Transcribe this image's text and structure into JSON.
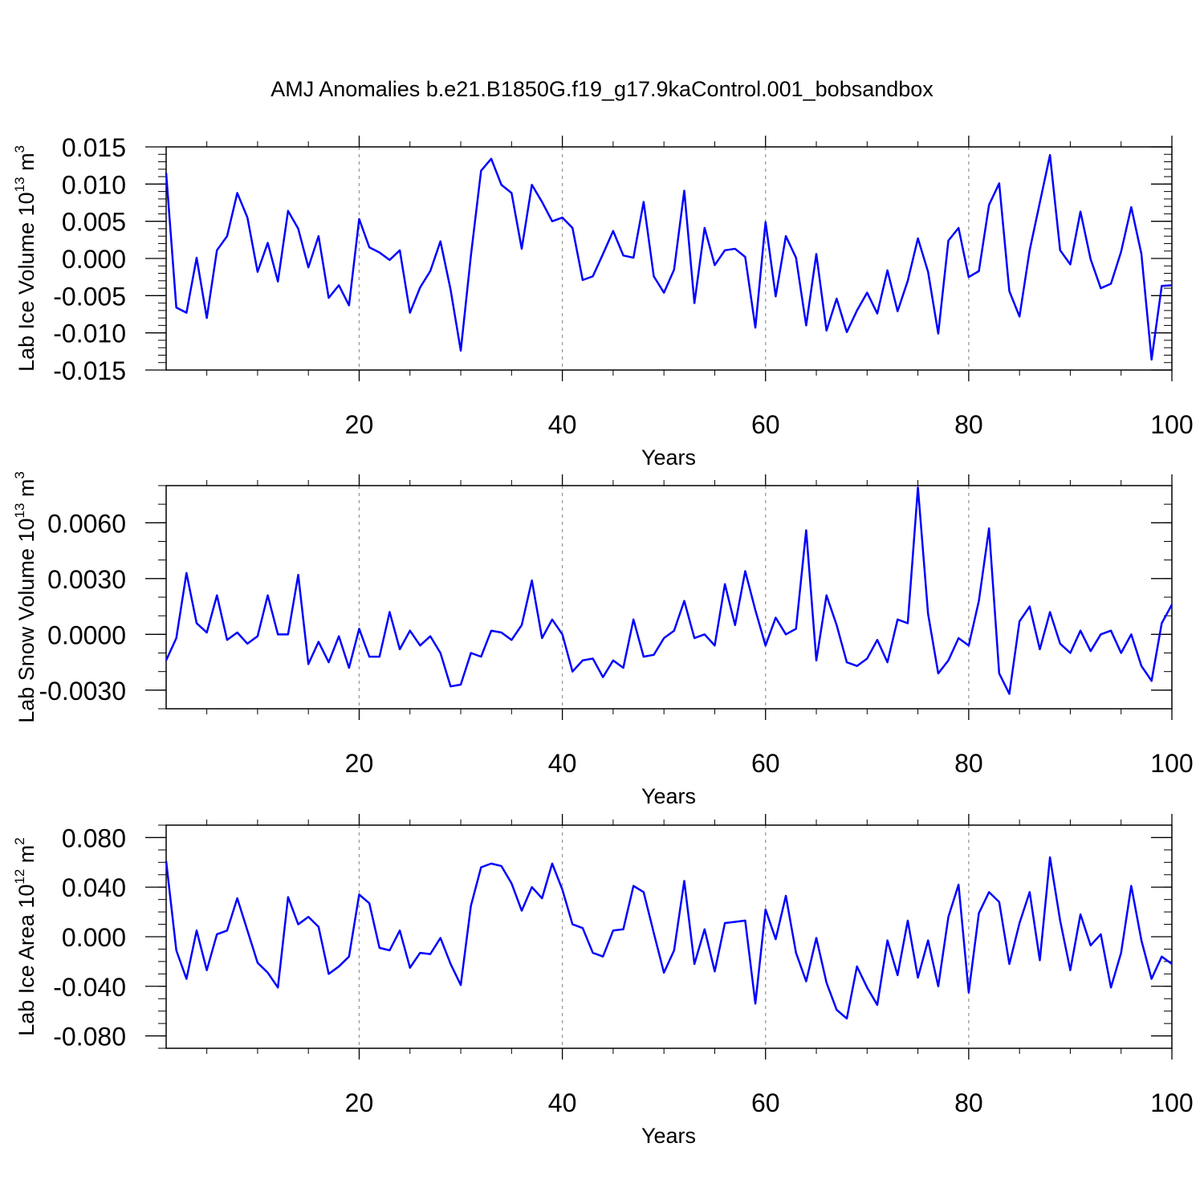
{
  "figure": {
    "title": "AMJ Anomalies b.e21.B1850G.f19_g17.9kaControl.001_bobsandbox"
  },
  "chart_data": [
    {
      "type": "line",
      "ylabel_base": "Lab Ice Volume 10",
      "ylabel_exp": "13",
      "ylabel_unit": " m",
      "ylabel_unit_exp": "3",
      "xlabel": "Years",
      "xlim": [
        1,
        100
      ],
      "ylim": [
        -0.015,
        0.015
      ],
      "xticks": [
        20,
        40,
        60,
        80,
        100
      ],
      "yticks": [
        -0.015,
        -0.01,
        -0.005,
        0.0,
        0.005,
        0.01,
        0.015
      ],
      "ytick_labels": [
        "-0.015",
        "-0.010",
        "-0.005",
        "0.000",
        "0.005",
        "0.010",
        "0.015"
      ],
      "y_minor_step": 0.001,
      "grid": "dashed vertical at major x ticks",
      "line_color": "#0000ff",
      "x": [
        1,
        2,
        3,
        4,
        5,
        6,
        7,
        8,
        9,
        10,
        11,
        12,
        13,
        14,
        15,
        16,
        17,
        18,
        19,
        20,
        21,
        22,
        23,
        24,
        25,
        26,
        27,
        28,
        29,
        30,
        31,
        32,
        33,
        34,
        35,
        36,
        37,
        38,
        39,
        40,
        41,
        42,
        43,
        44,
        45,
        46,
        47,
        48,
        49,
        50,
        51,
        52,
        53,
        54,
        55,
        56,
        57,
        58,
        59,
        60,
        61,
        62,
        63,
        64,
        65,
        66,
        67,
        68,
        69,
        70,
        71,
        72,
        73,
        74,
        75,
        76,
        77,
        78,
        79,
        80,
        81,
        82,
        83,
        84,
        85,
        86,
        87,
        88,
        89,
        90,
        91,
        92,
        93,
        94,
        95,
        96,
        97,
        98,
        99,
        100
      ],
      "values": [
        0.0115,
        -0.0066,
        -0.0073,
        0.0001,
        -0.008,
        0.0011,
        0.003,
        0.0088,
        0.0055,
        -0.0018,
        0.0021,
        -0.0031,
        0.0064,
        0.004,
        -0.0012,
        0.003,
        -0.0053,
        -0.0036,
        -0.0063,
        0.0053,
        0.0015,
        0.0008,
        -0.0002,
        0.0011,
        -0.0073,
        -0.0039,
        -0.0017,
        0.0023,
        -0.0042,
        -0.0124,
        0.0004,
        0.0118,
        0.0134,
        0.0099,
        0.0088,
        0.0013,
        0.0099,
        0.0076,
        0.005,
        0.0055,
        0.0041,
        -0.0029,
        -0.0024,
        0.0006,
        0.0037,
        0.0004,
        0.0001,
        0.0076,
        -0.0024,
        -0.0046,
        -0.0015,
        0.0091,
        -0.006,
        0.0041,
        -0.0009,
        0.0011,
        0.0013,
        0.0002,
        -0.0093,
        0.0049,
        -0.0051,
        0.003,
        0.0001,
        -0.009,
        0.0006,
        -0.0097,
        -0.0054,
        -0.0099,
        -0.007,
        -0.0046,
        -0.0074,
        -0.0016,
        -0.0071,
        -0.003,
        0.0027,
        -0.0018,
        -0.0101,
        0.0024,
        0.0041,
        -0.0025,
        -0.0017,
        0.0072,
        0.0101,
        -0.0044,
        -0.0078,
        0.0011,
        0.0075,
        0.0139,
        0.0011,
        -0.0008,
        0.0063,
        -0.0001,
        -0.004,
        -0.0034,
        0.0009,
        0.0069,
        0.0006,
        -0.0136,
        -0.0037,
        -0.0036
      ]
    },
    {
      "type": "line",
      "ylabel_base": "Lab Snow Volume 10",
      "ylabel_exp": "13",
      "ylabel_unit": " m",
      "ylabel_unit_exp": "3",
      "xlabel": "Years",
      "xlim": [
        1,
        100
      ],
      "ylim": [
        -0.004,
        0.008
      ],
      "xticks": [
        20,
        40,
        60,
        80,
        100
      ],
      "yticks": [
        -0.003,
        0.0,
        0.003,
        0.006
      ],
      "ytick_labels": [
        "-0.0030",
        "0.0000",
        "0.0030",
        "0.0060"
      ],
      "y_minor_step": 0.001,
      "grid": "dashed vertical at major x ticks",
      "line_color": "#0000ff",
      "x": [
        1,
        2,
        3,
        4,
        5,
        6,
        7,
        8,
        9,
        10,
        11,
        12,
        13,
        14,
        15,
        16,
        17,
        18,
        19,
        20,
        21,
        22,
        23,
        24,
        25,
        26,
        27,
        28,
        29,
        30,
        31,
        32,
        33,
        34,
        35,
        36,
        37,
        38,
        39,
        40,
        41,
        42,
        43,
        44,
        45,
        46,
        47,
        48,
        49,
        50,
        51,
        52,
        53,
        54,
        55,
        56,
        57,
        58,
        59,
        60,
        61,
        62,
        63,
        64,
        65,
        66,
        67,
        68,
        69,
        70,
        71,
        72,
        73,
        74,
        75,
        76,
        77,
        78,
        79,
        80,
        81,
        82,
        83,
        84,
        85,
        86,
        87,
        88,
        89,
        90,
        91,
        92,
        93,
        94,
        95,
        96,
        97,
        98,
        99,
        100
      ],
      "values": [
        -0.0014,
        -0.0002,
        0.0033,
        0.0006,
        0.0001,
        0.0021,
        -0.0003,
        0.0001,
        -0.0005,
        -0.0001,
        0.0021,
        0.0,
        0.0,
        0.0032,
        -0.0016,
        -0.0004,
        -0.0015,
        -0.0001,
        -0.0018,
        0.0003,
        -0.0012,
        -0.0012,
        0.0012,
        -0.0008,
        0.0002,
        -0.0006,
        -0.0001,
        -0.001,
        -0.0028,
        -0.0027,
        -0.001,
        -0.0012,
        0.0002,
        0.0001,
        -0.0003,
        0.0005,
        0.0029,
        -0.0002,
        0.0008,
        0.0,
        -0.002,
        -0.0014,
        -0.0013,
        -0.0023,
        -0.0014,
        -0.0018,
        0.0008,
        -0.0012,
        -0.0011,
        -0.0002,
        0.0002,
        0.0018,
        -0.0002,
        0.0,
        -0.0006,
        0.0027,
        0.0005,
        0.0034,
        0.0013,
        -0.0006,
        0.0009,
        0.0,
        0.0003,
        0.0056,
        -0.0014,
        0.0021,
        0.0005,
        -0.0015,
        -0.0017,
        -0.0013,
        -0.0003,
        -0.0015,
        0.0008,
        0.0006,
        0.0079,
        0.0011,
        -0.0021,
        -0.0014,
        -0.0002,
        -0.0006,
        0.0018,
        0.0057,
        -0.0021,
        -0.0032,
        0.0007,
        0.0015,
        -0.0008,
        0.0012,
        -0.0005,
        -0.001,
        0.0002,
        -0.0009,
        0.0,
        0.0002,
        -0.001,
        0.0,
        -0.0017,
        -0.0025,
        0.0006,
        0.0016
      ]
    },
    {
      "type": "line",
      "ylabel_base": "Lab Ice Area 10",
      "ylabel_exp": "12",
      "ylabel_unit": " m",
      "ylabel_unit_exp": "2",
      "xlabel": "Years",
      "xlim": [
        1,
        100
      ],
      "ylim": [
        -0.09,
        0.09
      ],
      "xticks": [
        20,
        40,
        60,
        80,
        100
      ],
      "yticks": [
        -0.08,
        -0.04,
        0.0,
        0.04,
        0.08
      ],
      "ytick_labels": [
        "-0.080",
        "-0.040",
        "0.000",
        "0.040",
        "0.080"
      ],
      "y_minor_step": 0.01,
      "grid": "dashed vertical at major x ticks",
      "line_color": "#0000ff",
      "x": [
        1,
        2,
        3,
        4,
        5,
        6,
        7,
        8,
        9,
        10,
        11,
        12,
        13,
        14,
        15,
        16,
        17,
        18,
        19,
        20,
        21,
        22,
        23,
        24,
        25,
        26,
        27,
        28,
        29,
        30,
        31,
        32,
        33,
        34,
        35,
        36,
        37,
        38,
        39,
        40,
        41,
        42,
        43,
        44,
        45,
        46,
        47,
        48,
        49,
        50,
        51,
        52,
        53,
        54,
        55,
        56,
        57,
        58,
        59,
        60,
        61,
        62,
        63,
        64,
        65,
        66,
        67,
        68,
        69,
        70,
        71,
        72,
        73,
        74,
        75,
        76,
        77,
        78,
        79,
        80,
        81,
        82,
        83,
        84,
        85,
        86,
        87,
        88,
        89,
        90,
        91,
        92,
        93,
        94,
        95,
        96,
        97,
        98,
        99,
        100
      ],
      "values": [
        0.061,
        -0.011,
        -0.034,
        0.005,
        -0.027,
        0.002,
        0.005,
        0.031,
        0.005,
        -0.021,
        -0.029,
        -0.041,
        0.032,
        0.01,
        0.016,
        0.008,
        -0.03,
        -0.024,
        -0.016,
        0.034,
        0.027,
        -0.009,
        -0.011,
        0.005,
        -0.025,
        -0.013,
        -0.014,
        -0.001,
        -0.022,
        -0.039,
        0.025,
        0.056,
        0.059,
        0.057,
        0.043,
        0.021,
        0.04,
        0.031,
        0.059,
        0.038,
        0.01,
        0.007,
        -0.013,
        -0.016,
        0.005,
        0.006,
        0.041,
        0.036,
        0.003,
        -0.029,
        -0.011,
        0.045,
        -0.022,
        0.006,
        -0.028,
        0.011,
        0.012,
        0.013,
        -0.054,
        0.022,
        -0.002,
        0.033,
        -0.013,
        -0.036,
        -0.001,
        -0.037,
        -0.059,
        -0.066,
        -0.024,
        -0.041,
        -0.055,
        -0.003,
        -0.031,
        0.013,
        -0.033,
        -0.003,
        -0.04,
        0.016,
        0.042,
        -0.045,
        0.019,
        0.036,
        0.028,
        -0.022,
        0.011,
        0.036,
        -0.019,
        0.064,
        0.013,
        -0.027,
        0.018,
        -0.007,
        0.002,
        -0.041,
        -0.013,
        0.041,
        -0.003,
        -0.034,
        -0.016,
        -0.022
      ]
    }
  ]
}
